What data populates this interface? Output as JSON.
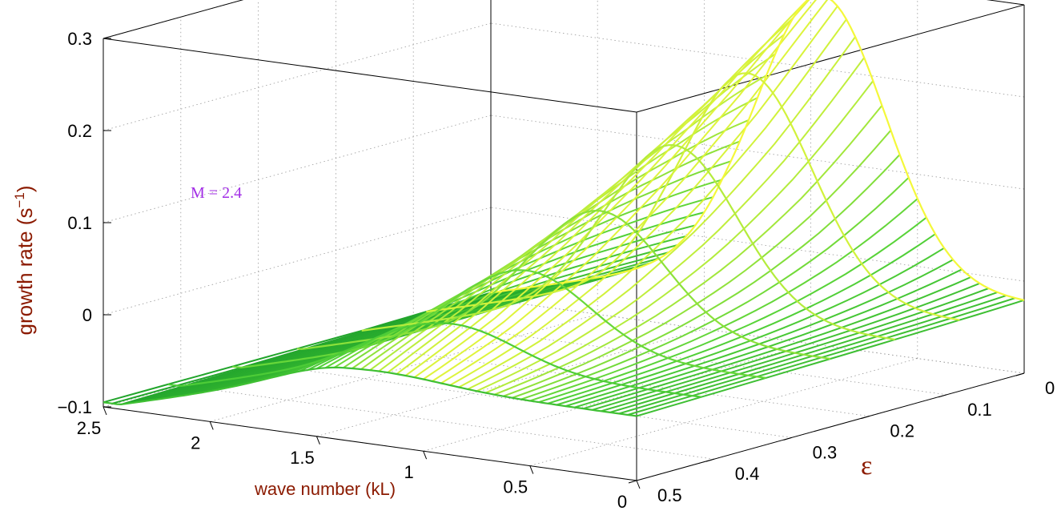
{
  "chart_data": {
    "type": "surface",
    "annotation": "M = 2.4",
    "zlabel_main": "growth rate (s",
    "zlabel_sup": "−1",
    "zlabel_close": ")",
    "xlabel": "wave number (kL)",
    "ylabel": "ε",
    "xlim": [
      0,
      2.5
    ],
    "ylim": [
      0,
      0.5
    ],
    "zlim": [
      -0.1,
      0.3
    ],
    "x_ticks": [
      "0",
      "0.5",
      "1",
      "1.5",
      "2",
      "2.5"
    ],
    "y_ticks": [
      "0",
      "0.1",
      "0.2",
      "0.3",
      "0.4",
      "0.5"
    ],
    "z_ticks": [
      "−0.1",
      "0",
      "0.1",
      "0.2",
      "0.3"
    ],
    "grid": true,
    "colormap": [
      "#1fa32b",
      "#52d138",
      "#b4ec3c",
      "#f4f83a"
    ],
    "surface_description": "growth rate peaks near kL≈1 at ε=0 (~0.28) and decreases with increasing ε; negative/flat at large kL",
    "ridge_profile": [
      {
        "eps": 0.0,
        "k_peak": 0.95,
        "peak": 0.28
      },
      {
        "eps": 0.1,
        "k_peak": 1.0,
        "peak": 0.2
      },
      {
        "eps": 0.2,
        "k_peak": 1.05,
        "peak": 0.13
      },
      {
        "eps": 0.3,
        "k_peak": 1.1,
        "peak": 0.07
      },
      {
        "eps": 0.4,
        "k_peak": 1.15,
        "peak": 0.02
      },
      {
        "eps": 0.5,
        "k_peak": 1.2,
        "peak": -0.02
      }
    ]
  }
}
